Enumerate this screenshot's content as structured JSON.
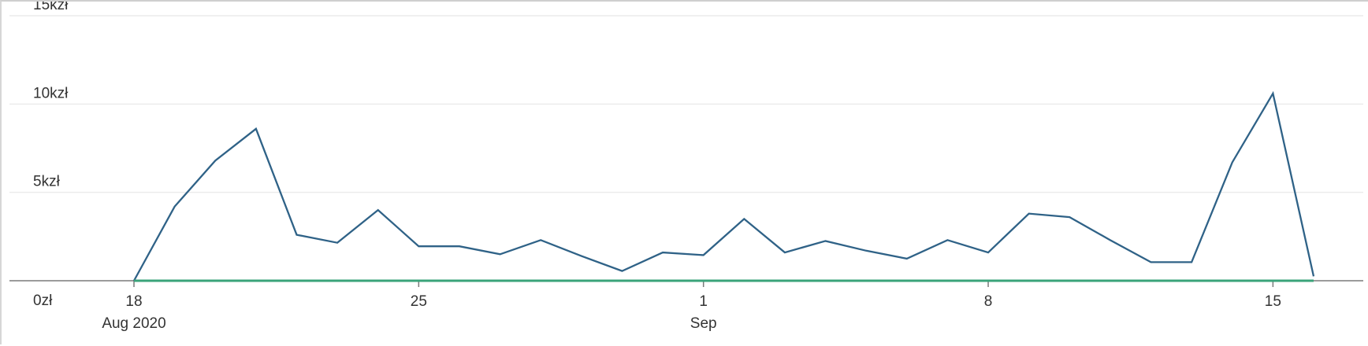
{
  "chart_data": {
    "type": "line",
    "title": "",
    "xlabel": "",
    "ylabel": "",
    "ylim": [
      0,
      15000
    ],
    "y_ticks": [
      {
        "value": 0,
        "label": "0zł"
      },
      {
        "value": 5000,
        "label": "5kzł"
      },
      {
        "value": 10000,
        "label": "10kzł"
      },
      {
        "value": 15000,
        "label": "15kzł"
      }
    ],
    "x_range": [
      "2020-08-18",
      "2020-09-16"
    ],
    "x_ticks": [
      {
        "date": "2020-08-18",
        "label": "18",
        "sub_label": "Aug 2020"
      },
      {
        "date": "2020-08-25",
        "label": "25",
        "sub_label": ""
      },
      {
        "date": "2020-09-01",
        "label": "1",
        "sub_label": "Sep"
      },
      {
        "date": "2020-09-08",
        "label": "8",
        "sub_label": ""
      },
      {
        "date": "2020-09-15",
        "label": "15",
        "sub_label": ""
      }
    ],
    "grid": true,
    "legend": "none",
    "series": [
      {
        "color": "#2f6287",
        "points": [
          [
            "2020-08-18",
            0
          ],
          [
            "2020-08-19",
            4200
          ],
          [
            "2020-08-20",
            6800
          ],
          [
            "2020-08-21",
            8600
          ],
          [
            "2020-08-22",
            2600
          ],
          [
            "2020-08-23",
            2150
          ],
          [
            "2020-08-24",
            4000
          ],
          [
            "2020-08-25",
            1950
          ],
          [
            "2020-08-26",
            1950
          ],
          [
            "2020-08-27",
            1500
          ],
          [
            "2020-08-28",
            2300
          ],
          [
            "2020-08-29",
            1400
          ],
          [
            "2020-08-30",
            550
          ],
          [
            "2020-08-31",
            1600
          ],
          [
            "2020-09-01",
            1450
          ],
          [
            "2020-09-02",
            3500
          ],
          [
            "2020-09-03",
            1600
          ],
          [
            "2020-09-04",
            2250
          ],
          [
            "2020-09-05",
            1700
          ],
          [
            "2020-09-06",
            1250
          ],
          [
            "2020-09-07",
            2300
          ],
          [
            "2020-09-08",
            1600
          ],
          [
            "2020-09-09",
            3800
          ],
          [
            "2020-09-10",
            3600
          ],
          [
            "2020-09-11",
            2300
          ],
          [
            "2020-09-12",
            1050
          ],
          [
            "2020-09-13",
            1050
          ],
          [
            "2020-09-14",
            6700
          ],
          [
            "2020-09-15",
            10600
          ],
          [
            "2020-09-16",
            250
          ]
        ]
      },
      {
        "color": "#3aa37a",
        "points": [
          [
            "2020-08-18",
            0
          ],
          [
            "2020-09-16",
            0
          ]
        ]
      }
    ]
  }
}
